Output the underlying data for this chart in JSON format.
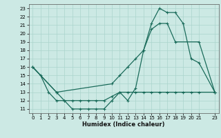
{
  "xlabel": "Humidex (Indice chaleur)",
  "xlim": [
    -0.5,
    23.5
  ],
  "ylim": [
    10.5,
    23.5
  ],
  "xticks": [
    0,
    1,
    2,
    3,
    4,
    5,
    6,
    7,
    8,
    9,
    10,
    11,
    12,
    13,
    14,
    15,
    16,
    17,
    18,
    19,
    20,
    21,
    23
  ],
  "yticks": [
    11,
    12,
    13,
    14,
    15,
    16,
    17,
    18,
    19,
    20,
    21,
    22,
    23
  ],
  "bg_color": "#cce9e4",
  "line_color": "#1a6b5a",
  "grid_color": "#aad4cc",
  "line1_x": [
    0,
    1,
    2,
    3,
    4,
    5,
    6,
    7,
    8,
    9,
    10,
    11,
    12,
    13,
    14,
    15,
    16,
    17,
    18,
    19,
    20,
    21,
    23
  ],
  "line1_y": [
    16,
    15,
    13,
    12,
    12,
    11,
    11,
    11,
    11,
    11,
    12,
    13,
    12,
    13.5,
    18,
    21.2,
    23,
    22.5,
    22.5,
    21.2,
    17,
    16.5,
    13
  ],
  "line2_x": [
    0,
    3,
    4,
    5,
    6,
    7,
    8,
    9,
    10,
    11,
    12,
    13,
    14,
    15,
    16,
    17,
    18,
    19,
    20,
    21,
    23
  ],
  "line2_y": [
    16,
    13,
    12,
    12,
    12,
    12,
    12,
    12,
    12.5,
    13,
    13,
    13,
    13,
    13,
    13,
    13,
    13,
    13,
    13,
    13,
    13
  ],
  "line3_x": [
    0,
    3,
    10,
    11,
    12,
    13,
    14,
    15,
    16,
    17,
    18,
    21,
    23
  ],
  "line3_y": [
    16,
    13,
    14,
    15,
    16,
    17,
    18,
    20.5,
    21.2,
    21.2,
    19,
    19,
    13
  ]
}
